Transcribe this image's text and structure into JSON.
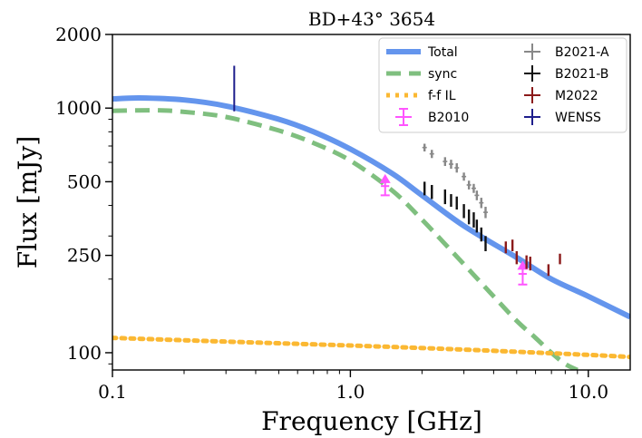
{
  "chart_data": {
    "type": "line",
    "title": "BD+43° 3654",
    "xlabel": "Frequency [GHz]",
    "ylabel": "Flux [mJy]",
    "xscale": "log",
    "yscale": "log",
    "xlim": [
      0.1,
      15
    ],
    "ylim": [
      85,
      2000
    ],
    "xticks": [
      {
        "value": 0.1,
        "label": "0.1"
      },
      {
        "value": 1.0,
        "label": "1.0"
      },
      {
        "value": 10.0,
        "label": "10.0"
      }
    ],
    "yticks": [
      {
        "value": 100,
        "label": "100"
      },
      {
        "value": 250,
        "label": "250"
      },
      {
        "value": 500,
        "label": "500"
      },
      {
        "value": 1000,
        "label": "1000"
      },
      {
        "value": 2000,
        "label": "2000"
      }
    ],
    "legend_position": "top-right",
    "curves": [
      {
        "name": "Total",
        "color": "#6495ED",
        "style": "solid",
        "x": [
          0.1,
          0.13,
          0.2,
          0.3,
          0.5,
          0.7,
          1.0,
          1.5,
          2.0,
          3.0,
          5.0,
          7.0,
          10.0,
          15.0
        ],
        "y": [
          1090,
          1100,
          1080,
          1020,
          900,
          800,
          680,
          540,
          440,
          330,
          245,
          200,
          170,
          140
        ]
      },
      {
        "name": "sync",
        "color": "#7FBF7F",
        "style": "dashed",
        "x": [
          0.1,
          0.15,
          0.2,
          0.3,
          0.5,
          0.7,
          1.0,
          1.5,
          2.0,
          3.0,
          4.0,
          5.0,
          6.0,
          7.0,
          8.0,
          9.0
        ],
        "y": [
          975,
          980,
          965,
          920,
          810,
          720,
          610,
          460,
          350,
          230,
          170,
          135,
          115,
          100,
          90,
          85
        ]
      },
      {
        "name": "f-f IL",
        "color": "#FBB832",
        "style": "dotted",
        "x": [
          0.1,
          0.3,
          1.0,
          3.0,
          10.0,
          15.0
        ],
        "y": [
          115,
          111,
          107,
          103,
          98,
          96
        ]
      }
    ],
    "series": [
      {
        "name": "B2010",
        "color": "#FF55FF",
        "marker": "up-arrow",
        "xerr": 0.04,
        "points": [
          {
            "x": 1.4,
            "y": 480,
            "yerr": 40
          },
          {
            "x": 5.3,
            "y": 210,
            "yerr": 20
          }
        ]
      },
      {
        "name": "B2021-A",
        "color": "#888888",
        "marker": "errorbar",
        "points": [
          {
            "x": 2.05,
            "y": 690,
            "yerr": 25
          },
          {
            "x": 2.2,
            "y": 650,
            "yerr": 25
          },
          {
            "x": 2.5,
            "y": 605,
            "yerr": 25
          },
          {
            "x": 2.65,
            "y": 590,
            "yerr": 25
          },
          {
            "x": 2.8,
            "y": 570,
            "yerr": 25
          },
          {
            "x": 3.0,
            "y": 525,
            "yerr": 20
          },
          {
            "x": 3.15,
            "y": 485,
            "yerr": 20
          },
          {
            "x": 3.3,
            "y": 470,
            "yerr": 20
          },
          {
            "x": 3.4,
            "y": 440,
            "yerr": 20
          },
          {
            "x": 3.55,
            "y": 410,
            "yerr": 20
          },
          {
            "x": 3.7,
            "y": 375,
            "yerr": 20
          }
        ]
      },
      {
        "name": "B2021-B",
        "color": "#111111",
        "marker": "errorbar",
        "points": [
          {
            "x": 2.05,
            "y": 470,
            "yerr": 30
          },
          {
            "x": 2.2,
            "y": 455,
            "yerr": 30
          },
          {
            "x": 2.5,
            "y": 435,
            "yerr": 30
          },
          {
            "x": 2.65,
            "y": 420,
            "yerr": 25
          },
          {
            "x": 2.8,
            "y": 410,
            "yerr": 25
          },
          {
            "x": 3.0,
            "y": 380,
            "yerr": 25
          },
          {
            "x": 3.15,
            "y": 360,
            "yerr": 25
          },
          {
            "x": 3.3,
            "y": 350,
            "yerr": 25
          },
          {
            "x": 3.4,
            "y": 330,
            "yerr": 20
          },
          {
            "x": 3.55,
            "y": 305,
            "yerr": 20
          },
          {
            "x": 3.7,
            "y": 280,
            "yerr": 20
          }
        ]
      },
      {
        "name": "M2022",
        "color": "#8B1A1A",
        "marker": "errorbar",
        "points": [
          {
            "x": 4.5,
            "y": 270,
            "yerr": 15
          },
          {
            "x": 4.8,
            "y": 275,
            "yerr": 15
          },
          {
            "x": 5.0,
            "y": 245,
            "yerr": 15
          },
          {
            "x": 5.5,
            "y": 235,
            "yerr": 15
          },
          {
            "x": 5.7,
            "y": 232,
            "yerr": 15
          },
          {
            "x": 6.8,
            "y": 218,
            "yerr": 12
          },
          {
            "x": 7.6,
            "y": 242,
            "yerr": 12
          }
        ]
      },
      {
        "name": "WENSS",
        "color": "#1E1E8C",
        "marker": "errorbar",
        "points": [
          {
            "x": 0.325,
            "y": 1230,
            "yerr": 260
          }
        ]
      }
    ],
    "legend_entries": [
      "Total",
      "sync",
      "f-f IL",
      "B2010",
      "B2021-A",
      "B2021-B",
      "M2022",
      "WENSS"
    ]
  }
}
